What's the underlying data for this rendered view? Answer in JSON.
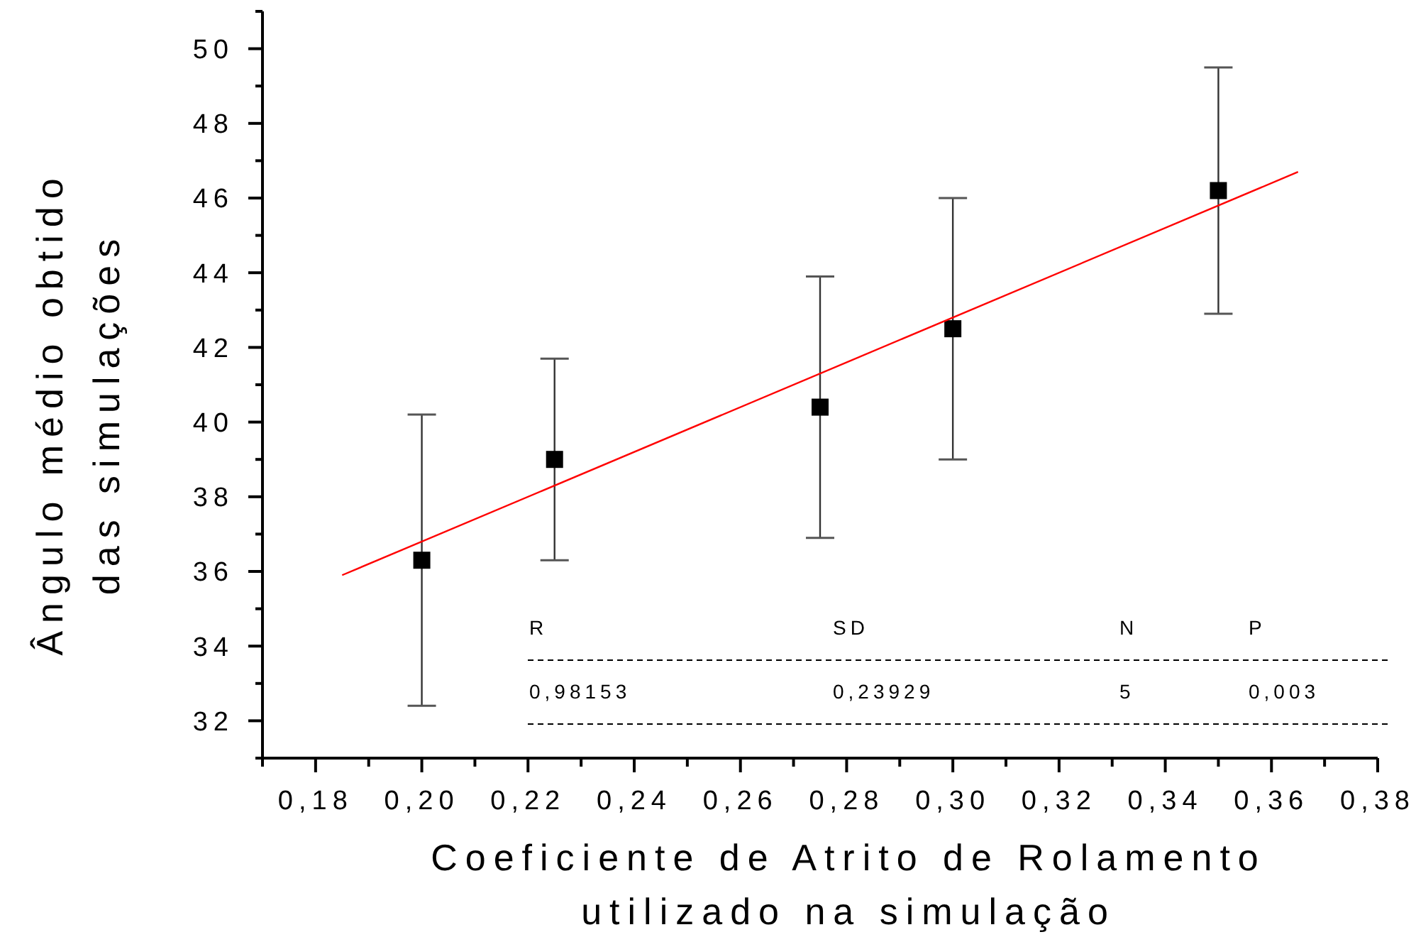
{
  "chart_data": {
    "type": "scatter",
    "xlabel": "Coeficiente de Atrito de Rolamento\nutilizado na simulação",
    "ylabel": "Ângulo médio obtido\ndas simulações",
    "xlim": [
      0.17,
      0.38
    ],
    "xticks": [
      {
        "value": 0.18,
        "label": "0,18"
      },
      {
        "value": 0.2,
        "label": "0,20"
      },
      {
        "value": 0.22,
        "label": "0,22"
      },
      {
        "value": 0.24,
        "label": "0,24"
      },
      {
        "value": 0.26,
        "label": "0,26"
      },
      {
        "value": 0.28,
        "label": "0,28"
      },
      {
        "value": 0.3,
        "label": "0,30"
      },
      {
        "value": 0.32,
        "label": "0,32"
      },
      {
        "value": 0.34,
        "label": "0,34"
      },
      {
        "value": 0.36,
        "label": "0,36"
      },
      {
        "value": 0.38,
        "label": "0,38"
      }
    ],
    "ylim": [
      31,
      51
    ],
    "yticks": [
      32,
      34,
      36,
      38,
      40,
      42,
      44,
      46,
      48,
      50
    ],
    "grid": false,
    "series": [
      {
        "marker": "square",
        "color": "#000000",
        "x": [
          0.2,
          0.225,
          0.275,
          0.3,
          0.35
        ],
        "values": [
          36.3,
          39.0,
          40.4,
          42.5,
          46.2
        ],
        "errors": [
          [
            32.4,
            40.2
          ],
          [
            36.3,
            41.7
          ],
          [
            36.9,
            43.9
          ],
          [
            39.0,
            46.0
          ],
          [
            42.9,
            49.5
          ]
        ]
      },
      {
        "type": "line",
        "color": "#ff0000",
        "x": [
          0.185,
          0.365
        ],
        "values": [
          35.9,
          46.7
        ]
      }
    ],
    "annotations": [
      "R",
      "SD",
      "N",
      "P",
      "0,98153",
      "0,23929",
      "5",
      "0,003"
    ]
  }
}
